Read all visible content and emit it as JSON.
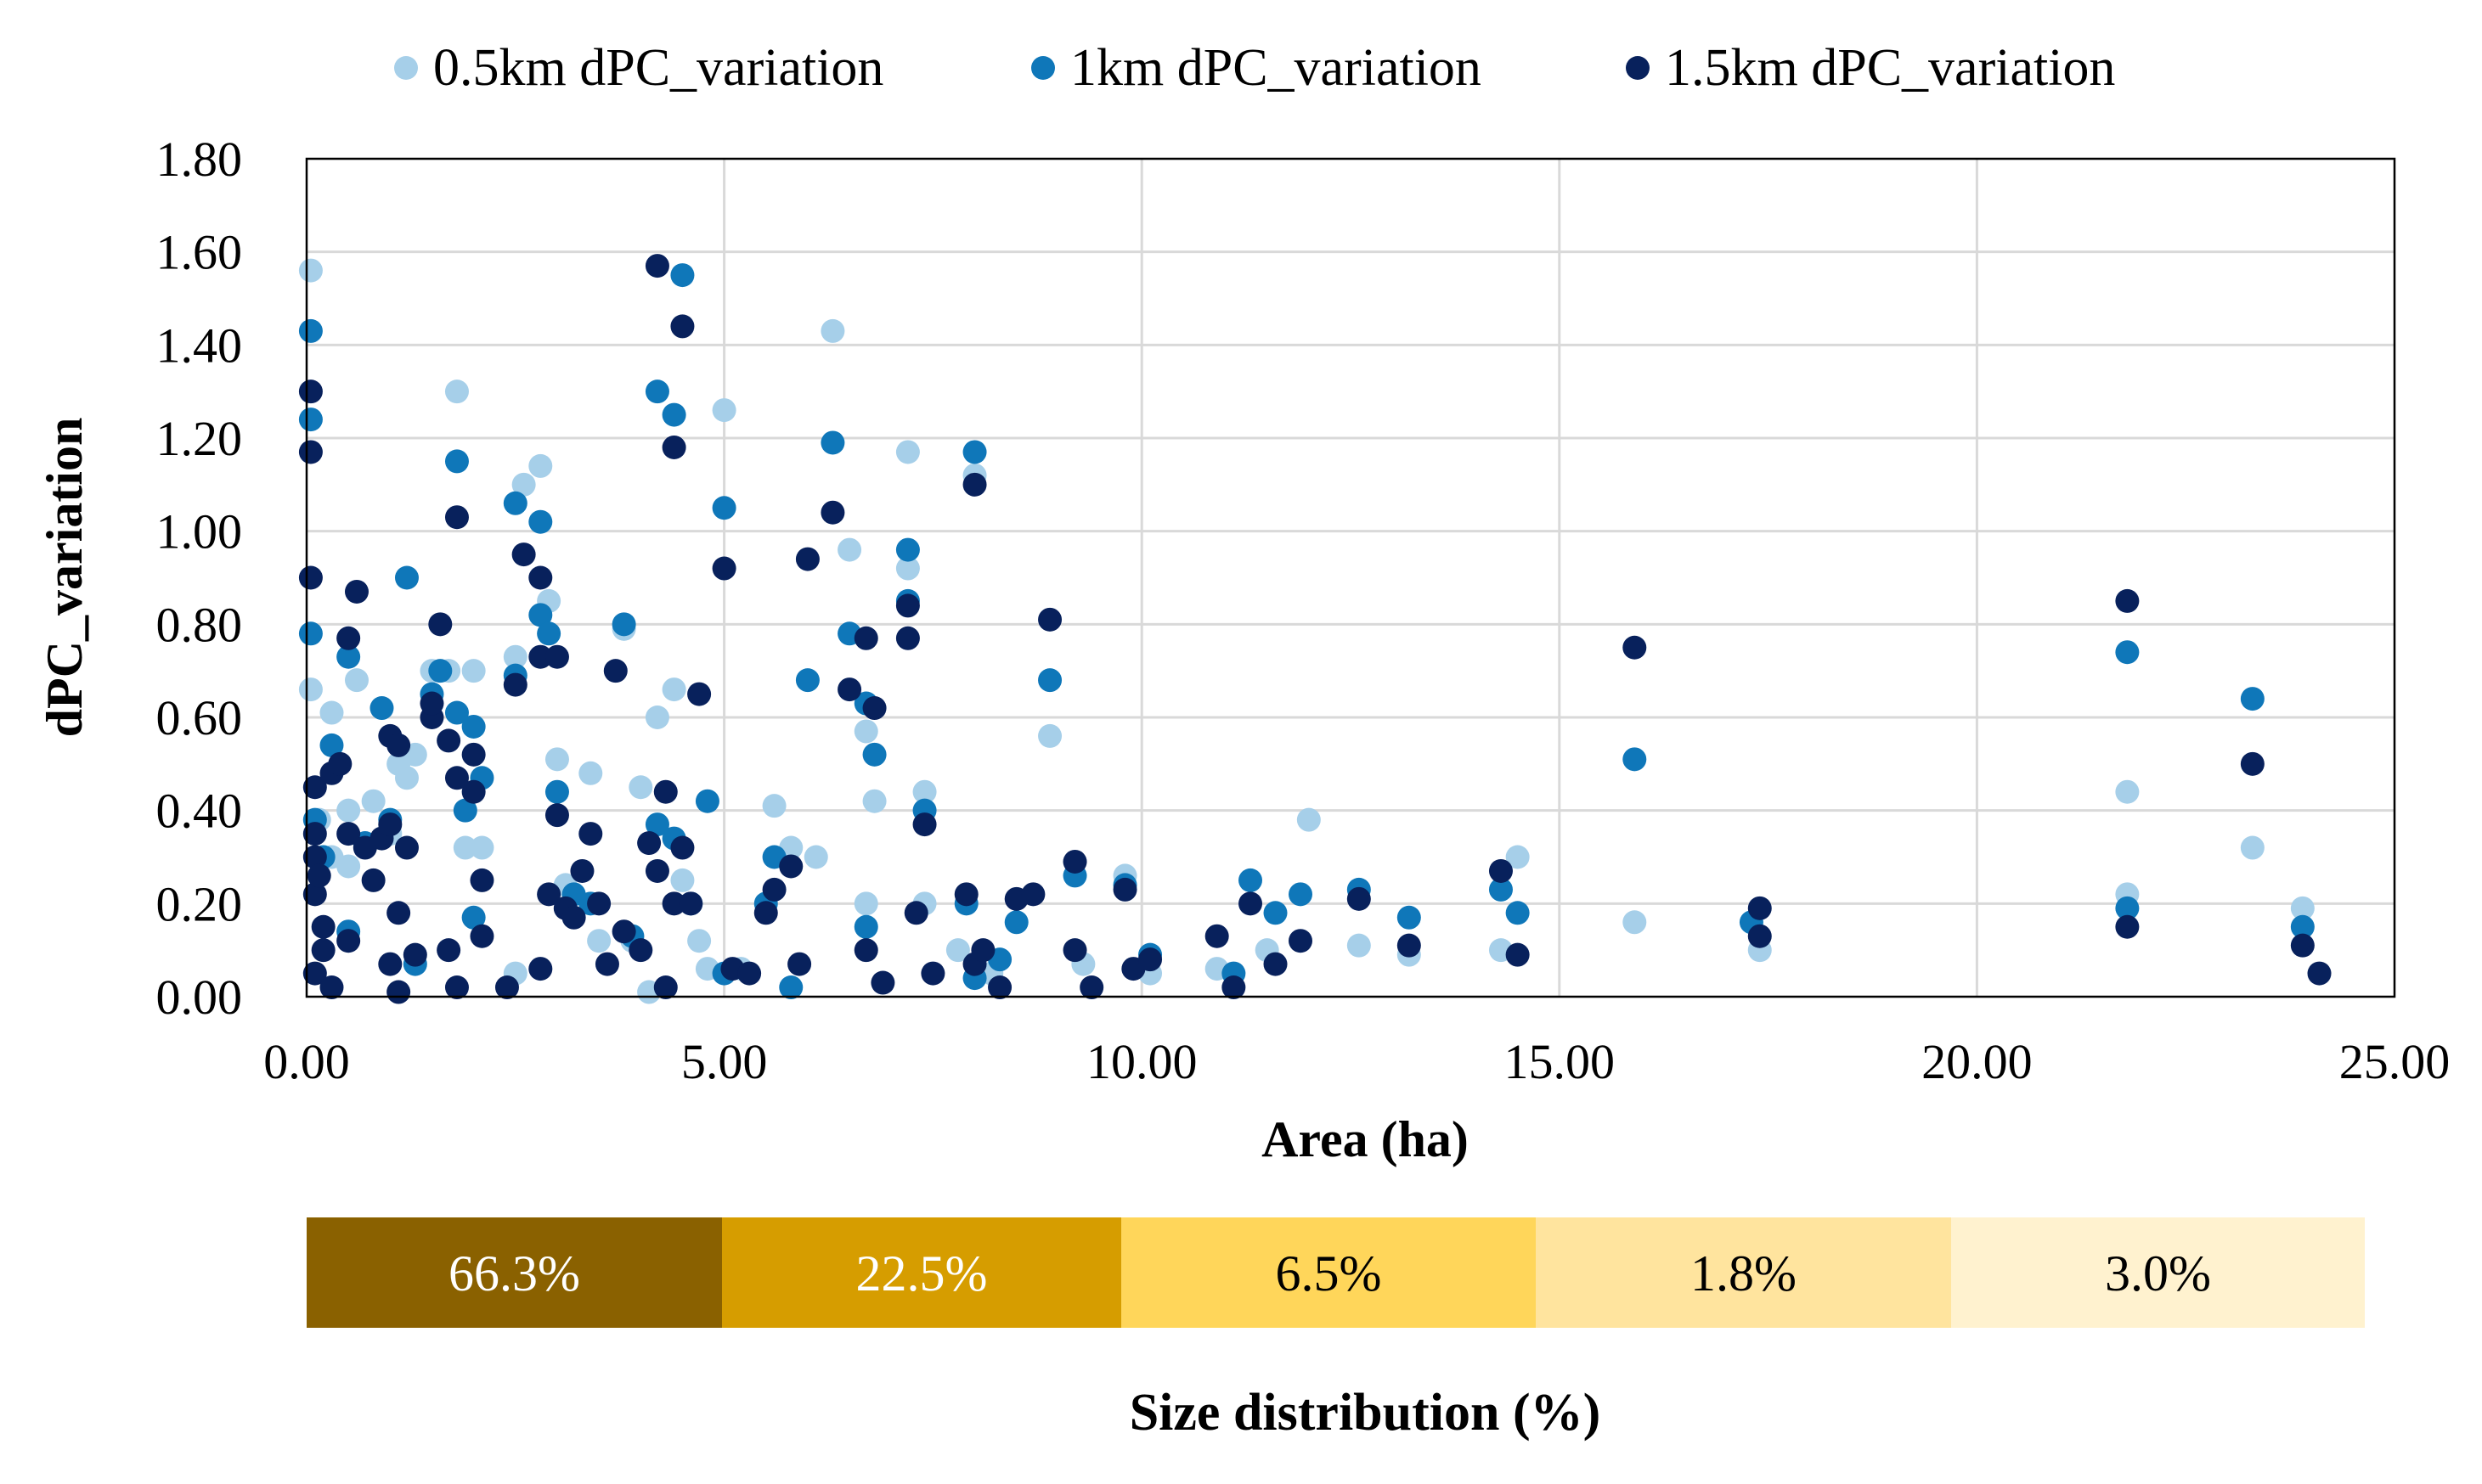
{
  "colors": {
    "light": "#a6cfe9",
    "mid": "#0f77b9",
    "dark": "#08215c",
    "grid": "#d9d9d9",
    "axis": "#000000",
    "bins": [
      "#8a6100",
      "#d69d00",
      "#ffd65a",
      "#ffe49e",
      "#fff2cf"
    ],
    "bin_text": [
      "#ffffff",
      "#ffffff",
      "#000000",
      "#000000",
      "#000000"
    ]
  },
  "chart_data": {
    "type": "scatter",
    "xlabel": "Area (ha)",
    "ylabel": "dPC_variation",
    "xlim": [
      0,
      25
    ],
    "ylim": [
      0,
      1.8
    ],
    "x_ticks": [
      "0.00",
      "5.00",
      "10.00",
      "15.00",
      "20.00",
      "25.00"
    ],
    "y_ticks": [
      "0.00",
      "0.20",
      "0.40",
      "0.60",
      "0.80",
      "1.00",
      "1.20",
      "1.40",
      "1.60",
      "1.80"
    ],
    "legend_position": "top",
    "series": [
      {
        "name": "0.5km dPC_variation",
        "color_key": "light",
        "points": [
          [
            0.05,
            1.56
          ],
          [
            0.05,
            0.66
          ],
          [
            0.15,
            0.38
          ],
          [
            0.3,
            0.61
          ],
          [
            0.3,
            0.3
          ],
          [
            0.5,
            0.4
          ],
          [
            0.5,
            0.28
          ],
          [
            0.6,
            0.68
          ],
          [
            0.8,
            0.42
          ],
          [
            1.0,
            0.35
          ],
          [
            1.1,
            0.5
          ],
          [
            1.2,
            0.47
          ],
          [
            1.3,
            0.52
          ],
          [
            1.5,
            0.7
          ],
          [
            1.7,
            0.7
          ],
          [
            1.8,
            1.3
          ],
          [
            1.9,
            0.32
          ],
          [
            2.0,
            0.7
          ],
          [
            2.1,
            0.32
          ],
          [
            2.5,
            0.73
          ],
          [
            2.5,
            0.05
          ],
          [
            2.6,
            1.1
          ],
          [
            2.8,
            1.14
          ],
          [
            2.9,
            0.85
          ],
          [
            3.0,
            0.51
          ],
          [
            3.1,
            0.24
          ],
          [
            3.4,
            0.48
          ],
          [
            3.5,
            0.12
          ],
          [
            3.8,
            0.79
          ],
          [
            3.9,
            0.12
          ],
          [
            4.0,
            0.45
          ],
          [
            4.1,
            0.01
          ],
          [
            4.2,
            0.6
          ],
          [
            4.4,
            0.66
          ],
          [
            4.5,
            0.25
          ],
          [
            4.7,
            0.12
          ],
          [
            4.8,
            0.06
          ],
          [
            5.0,
            1.26
          ],
          [
            5.2,
            0.06
          ],
          [
            5.6,
            0.41
          ],
          [
            5.8,
            0.32
          ],
          [
            6.1,
            0.3
          ],
          [
            6.3,
            1.43
          ],
          [
            6.5,
            0.96
          ],
          [
            6.7,
            0.57
          ],
          [
            6.7,
            0.2
          ],
          [
            6.8,
            0.42
          ],
          [
            7.2,
            0.92
          ],
          [
            7.2,
            1.17
          ],
          [
            7.4,
            0.2
          ],
          [
            7.4,
            0.44
          ],
          [
            7.8,
            0.1
          ],
          [
            8.0,
            1.12
          ],
          [
            8.2,
            0.05
          ],
          [
            8.9,
            0.56
          ],
          [
            9.3,
            0.07
          ],
          [
            9.8,
            0.26
          ],
          [
            10.1,
            0.05
          ],
          [
            10.9,
            0.06
          ],
          [
            11.5,
            0.1
          ],
          [
            12.0,
            0.38
          ],
          [
            12.6,
            0.11
          ],
          [
            13.2,
            0.09
          ],
          [
            14.3,
            0.1
          ],
          [
            14.5,
            0.3
          ],
          [
            15.9,
            0.16
          ],
          [
            17.4,
            0.1
          ],
          [
            21.8,
            0.44
          ],
          [
            21.8,
            0.22
          ],
          [
            23.3,
            0.32
          ],
          [
            23.9,
            0.19
          ]
        ]
      },
      {
        "name": "1km dPC_variation",
        "color_key": "mid",
        "points": [
          [
            0.05,
            1.43
          ],
          [
            0.05,
            1.24
          ],
          [
            0.05,
            0.78
          ],
          [
            0.1,
            0.38
          ],
          [
            0.2,
            0.3
          ],
          [
            0.3,
            0.54
          ],
          [
            0.5,
            0.73
          ],
          [
            0.5,
            0.14
          ],
          [
            0.7,
            0.33
          ],
          [
            0.9,
            0.62
          ],
          [
            1.0,
            0.38
          ],
          [
            1.2,
            0.9
          ],
          [
            1.3,
            0.07
          ],
          [
            1.5,
            0.65
          ],
          [
            1.6,
            0.7
          ],
          [
            1.8,
            1.15
          ],
          [
            1.8,
            0.61
          ],
          [
            1.9,
            0.4
          ],
          [
            2.0,
            0.17
          ],
          [
            2.0,
            0.58
          ],
          [
            2.1,
            0.47
          ],
          [
            2.5,
            0.69
          ],
          [
            2.5,
            1.06
          ],
          [
            2.8,
            1.02
          ],
          [
            2.8,
            0.82
          ],
          [
            2.9,
            0.78
          ],
          [
            3.0,
            0.44
          ],
          [
            3.2,
            0.22
          ],
          [
            3.4,
            0.2
          ],
          [
            3.8,
            0.8
          ],
          [
            3.9,
            0.13
          ],
          [
            4.2,
            1.3
          ],
          [
            4.2,
            0.37
          ],
          [
            4.4,
            1.25
          ],
          [
            4.4,
            0.34
          ],
          [
            4.5,
            1.55
          ],
          [
            4.6,
            0.2
          ],
          [
            4.8,
            0.42
          ],
          [
            5.0,
            1.05
          ],
          [
            5.0,
            0.05
          ],
          [
            5.5,
            0.2
          ],
          [
            5.6,
            0.3
          ],
          [
            5.8,
            0.02
          ],
          [
            6.0,
            0.68
          ],
          [
            6.3,
            1.19
          ],
          [
            6.5,
            0.78
          ],
          [
            6.7,
            0.63
          ],
          [
            6.7,
            0.15
          ],
          [
            6.8,
            0.52
          ],
          [
            7.2,
            0.96
          ],
          [
            7.2,
            0.85
          ],
          [
            7.4,
            0.4
          ],
          [
            7.9,
            0.2
          ],
          [
            8.0,
            1.17
          ],
          [
            8.0,
            0.04
          ],
          [
            8.3,
            0.08
          ],
          [
            8.5,
            0.16
          ],
          [
            8.9,
            0.68
          ],
          [
            9.2,
            0.26
          ],
          [
            9.8,
            0.24
          ],
          [
            10.1,
            0.09
          ],
          [
            11.1,
            0.05
          ],
          [
            11.3,
            0.25
          ],
          [
            11.6,
            0.18
          ],
          [
            11.9,
            0.22
          ],
          [
            12.6,
            0.23
          ],
          [
            13.2,
            0.17
          ],
          [
            14.3,
            0.23
          ],
          [
            14.5,
            0.18
          ],
          [
            15.9,
            0.51
          ],
          [
            17.3,
            0.16
          ],
          [
            21.8,
            0.74
          ],
          [
            21.8,
            0.19
          ],
          [
            23.3,
            0.64
          ],
          [
            23.9,
            0.15
          ]
        ]
      },
      {
        "name": "1.5km dPC_variation",
        "color_key": "dark",
        "points": [
          [
            0.05,
            1.3
          ],
          [
            0.05,
            1.17
          ],
          [
            0.05,
            0.9
          ],
          [
            0.1,
            0.45
          ],
          [
            0.1,
            0.35
          ],
          [
            0.1,
            0.3
          ],
          [
            0.1,
            0.22
          ],
          [
            0.1,
            0.05
          ],
          [
            0.15,
            0.26
          ],
          [
            0.2,
            0.15
          ],
          [
            0.2,
            0.1
          ],
          [
            0.3,
            0.48
          ],
          [
            0.3,
            0.02
          ],
          [
            0.4,
            0.5
          ],
          [
            0.5,
            0.35
          ],
          [
            0.5,
            0.12
          ],
          [
            0.5,
            0.77
          ],
          [
            0.6,
            0.87
          ],
          [
            0.7,
            0.32
          ],
          [
            0.8,
            0.25
          ],
          [
            0.9,
            0.34
          ],
          [
            1.0,
            0.56
          ],
          [
            1.0,
            0.37
          ],
          [
            1.0,
            0.07
          ],
          [
            1.1,
            0.54
          ],
          [
            1.1,
            0.18
          ],
          [
            1.1,
            0.01
          ],
          [
            1.2,
            0.32
          ],
          [
            1.3,
            0.09
          ],
          [
            1.5,
            0.6
          ],
          [
            1.5,
            0.63
          ],
          [
            1.6,
            0.8
          ],
          [
            1.7,
            0.55
          ],
          [
            1.7,
            0.1
          ],
          [
            1.8,
            1.03
          ],
          [
            1.8,
            0.47
          ],
          [
            1.8,
            0.02
          ],
          [
            2.0,
            0.44
          ],
          [
            2.0,
            0.52
          ],
          [
            2.1,
            0.25
          ],
          [
            2.1,
            0.13
          ],
          [
            2.4,
            0.02
          ],
          [
            2.5,
            0.67
          ],
          [
            2.6,
            0.95
          ],
          [
            2.8,
            0.9
          ],
          [
            2.8,
            0.73
          ],
          [
            2.8,
            0.06
          ],
          [
            2.9,
            0.22
          ],
          [
            3.0,
            0.39
          ],
          [
            3.0,
            0.73
          ],
          [
            3.1,
            0.19
          ],
          [
            3.2,
            0.17
          ],
          [
            3.3,
            0.27
          ],
          [
            3.4,
            0.35
          ],
          [
            3.5,
            0.2
          ],
          [
            3.6,
            0.07
          ],
          [
            3.7,
            0.7
          ],
          [
            3.8,
            0.14
          ],
          [
            4.0,
            0.1
          ],
          [
            4.1,
            0.33
          ],
          [
            4.2,
            1.57
          ],
          [
            4.2,
            0.27
          ],
          [
            4.3,
            0.02
          ],
          [
            4.3,
            0.44
          ],
          [
            4.4,
            1.18
          ],
          [
            4.4,
            0.2
          ],
          [
            4.5,
            1.44
          ],
          [
            4.5,
            0.32
          ],
          [
            4.6,
            0.2
          ],
          [
            4.7,
            0.65
          ],
          [
            5.0,
            0.92
          ],
          [
            5.1,
            0.06
          ],
          [
            5.3,
            0.05
          ],
          [
            5.5,
            0.18
          ],
          [
            5.6,
            0.23
          ],
          [
            5.8,
            0.28
          ],
          [
            5.9,
            0.07
          ],
          [
            6.0,
            0.94
          ],
          [
            6.3,
            1.04
          ],
          [
            6.5,
            0.66
          ],
          [
            6.7,
            0.77
          ],
          [
            6.7,
            0.1
          ],
          [
            6.8,
            0.62
          ],
          [
            6.9,
            0.03
          ],
          [
            7.2,
            0.84
          ],
          [
            7.2,
            0.77
          ],
          [
            7.3,
            0.18
          ],
          [
            7.4,
            0.37
          ],
          [
            7.5,
            0.05
          ],
          [
            7.9,
            0.22
          ],
          [
            8.0,
            1.1
          ],
          [
            8.0,
            0.07
          ],
          [
            8.1,
            0.1
          ],
          [
            8.3,
            0.02
          ],
          [
            8.5,
            0.21
          ],
          [
            8.7,
            0.22
          ],
          [
            8.9,
            0.81
          ],
          [
            9.2,
            0.29
          ],
          [
            9.2,
            0.1
          ],
          [
            9.4,
            0.02
          ],
          [
            9.8,
            0.23
          ],
          [
            9.9,
            0.06
          ],
          [
            10.1,
            0.08
          ],
          [
            10.9,
            0.13
          ],
          [
            11.1,
            0.02
          ],
          [
            11.3,
            0.2
          ],
          [
            11.6,
            0.07
          ],
          [
            11.9,
            0.12
          ],
          [
            12.6,
            0.21
          ],
          [
            13.2,
            0.11
          ],
          [
            14.3,
            0.27
          ],
          [
            14.5,
            0.09
          ],
          [
            15.9,
            0.75
          ],
          [
            17.4,
            0.19
          ],
          [
            17.4,
            0.13
          ],
          [
            21.8,
            0.85
          ],
          [
            21.8,
            0.15
          ],
          [
            23.3,
            0.5
          ],
          [
            23.9,
            0.11
          ],
          [
            24.1,
            0.05
          ]
        ]
      }
    ],
    "size_distribution": {
      "title": "Size distribution (%)",
      "bins": [
        {
          "label": "66.3%",
          "from": 0,
          "to": 5
        },
        {
          "label": "22.5%",
          "from": 5,
          "to": 10
        },
        {
          "label": "6.5%",
          "from": 10,
          "to": 15
        },
        {
          "label": "1.8%",
          "from": 15,
          "to": 20
        },
        {
          "label": "3.0%",
          "from": 20,
          "to": 25
        }
      ]
    }
  }
}
